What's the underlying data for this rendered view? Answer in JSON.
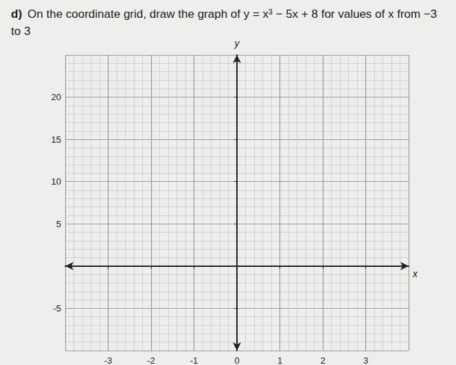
{
  "label": "d)",
  "question": "On the coordinate grid, draw the graph of y = x³ − 5x + 8 for values of x from −3 to 3",
  "chart_data": {
    "type": "line",
    "x_label": "x",
    "y_label": "y",
    "xlim": [
      -4,
      4
    ],
    "xticks": [
      -3,
      -2,
      -1,
      0,
      1,
      2,
      3
    ],
    "ylim": [
      -10,
      25
    ],
    "yticks": [
      -5,
      5,
      10,
      15,
      20
    ],
    "grid": true,
    "series": []
  }
}
